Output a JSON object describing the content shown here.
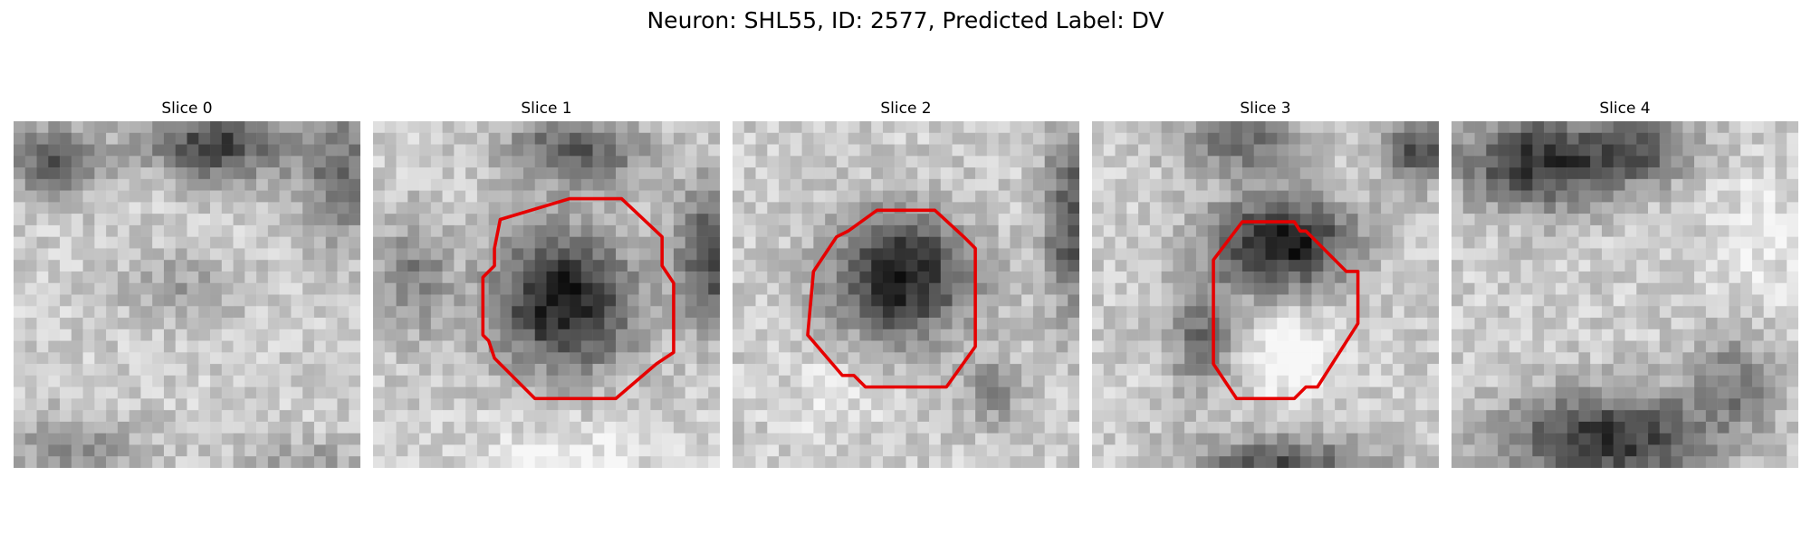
{
  "figure": {
    "title": "Neuron: SHL55, ID: 2577, Predicted Label: DV"
  },
  "colors": {
    "outline": "#e60000"
  },
  "panels": [
    {
      "title": "Slice 0"
    },
    {
      "title": "Slice 1"
    },
    {
      "title": "Slice 2"
    },
    {
      "title": "Slice 3"
    },
    {
      "title": "Slice 4"
    }
  ]
}
